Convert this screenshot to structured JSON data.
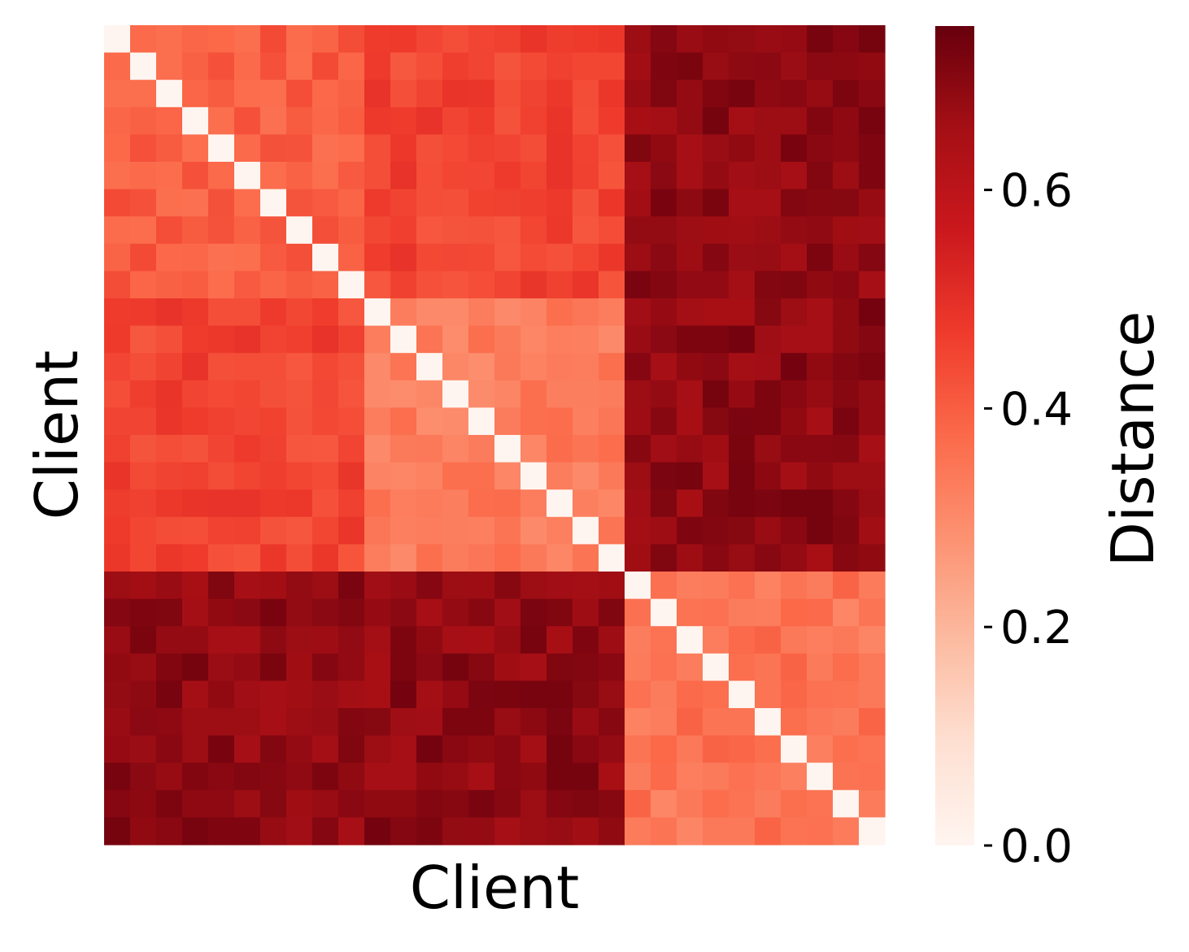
{
  "chart_data": {
    "type": "heatmap",
    "xlabel": "Client",
    "ylabel": "Client",
    "size": 30,
    "block_size": 20,
    "colormap": "Reds",
    "colorbar": {
      "label": "Distance",
      "vmin": 0.0,
      "vmax": 0.75,
      "ticks": [
        0.0,
        0.2,
        0.4,
        0.6
      ],
      "tick_labels": [
        "0.0",
        "0.2",
        "0.4",
        "0.6"
      ]
    },
    "value_pattern": {
      "diagonal": 0.0,
      "within_first_group_upper_left": 0.4,
      "within_first_group_lower_right": 0.33,
      "between_first_group_subblocks": 0.45,
      "within_second_group": 0.35,
      "between_groups": 0.69
    },
    "x_tick_labels_visible": false,
    "y_tick_labels_visible": false
  }
}
